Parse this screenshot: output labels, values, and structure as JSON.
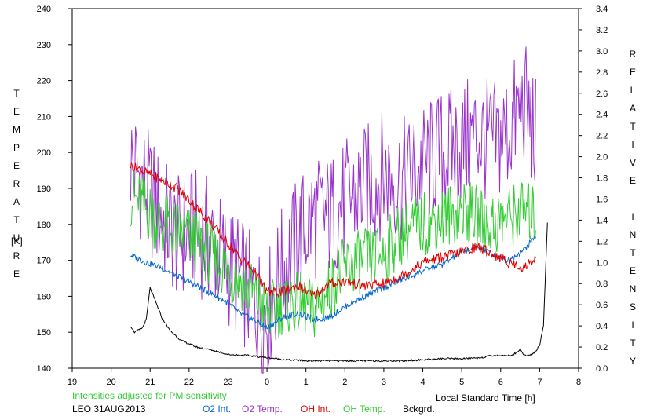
{
  "chart_data": {
    "type": "line",
    "x_ticks": [
      "19",
      "20",
      "21",
      "22",
      "23",
      "0",
      "1",
      "2",
      "3",
      "4",
      "5",
      "6",
      "7",
      "8"
    ],
    "y_left_ticks": [
      "140",
      "150",
      "160",
      "170",
      "180",
      "190",
      "200",
      "210",
      "220",
      "230",
      "240"
    ],
    "y_right_ticks": [
      "0.0",
      "0.2",
      "0.4",
      "0.6",
      "0.8",
      "1.0",
      "1.2",
      "1.4",
      "1.6",
      "1.8",
      "2.0",
      "2.2",
      "2.4",
      "2.6",
      "2.8",
      "3.0",
      "3.2",
      "3.4"
    ],
    "ylim_left": [
      140,
      240
    ],
    "ylim_right": [
      0,
      3.4
    ],
    "xlim": [
      19,
      32
    ],
    "ylabel_left": "TEMPERATURE",
    "ylabel_left_unit": "[K]",
    "ylabel_right": "RELATIVE INTENSITY",
    "xlabel": "Local Standard Time [h]",
    "note": "Intensities adjusted for PM sensitivity",
    "station": "LEO 31AUG2013",
    "series": [
      {
        "name": "O2 Int.",
        "color": "#0066cc",
        "axis": "right",
        "x": [
          20.5,
          20.9,
          21.3,
          21.7,
          22.1,
          22.5,
          22.9,
          23.3,
          23.7,
          24.0,
          24.4,
          24.8,
          25.2,
          25.6,
          26.0,
          26.5,
          27.0,
          27.5,
          28.0,
          28.5,
          29.0,
          29.4,
          29.8,
          30.2,
          30.6,
          30.9
        ],
        "y": [
          1.07,
          1.0,
          0.95,
          0.87,
          0.8,
          0.72,
          0.64,
          0.52,
          0.45,
          0.38,
          0.48,
          0.52,
          0.46,
          0.48,
          0.58,
          0.68,
          0.76,
          0.84,
          0.92,
          0.98,
          1.1,
          1.15,
          1.08,
          1.02,
          1.12,
          1.25
        ]
      },
      {
        "name": "O2 Temp.",
        "color": "#9933cc",
        "axis": "left",
        "x": [
          20.5,
          20.9,
          21.3,
          21.7,
          22.1,
          22.5,
          22.9,
          23.3,
          23.7,
          24.0,
          24.4,
          24.8,
          25.2,
          25.6,
          26.0,
          26.5,
          27.0,
          27.5,
          28.0,
          28.5,
          29.0,
          29.4,
          29.8,
          30.2,
          30.6,
          30.9
        ],
        "y": [
          198,
          190,
          182,
          176,
          178,
          176,
          170,
          165,
          158,
          155,
          168,
          176,
          182,
          182,
          186,
          190,
          194,
          192,
          196,
          200,
          202,
          205,
          202,
          206,
          214,
          204
        ]
      },
      {
        "name": "OH Int.",
        "color": "#dd0000",
        "axis": "right",
        "x": [
          20.5,
          20.9,
          21.3,
          21.7,
          22.1,
          22.5,
          22.9,
          23.3,
          23.7,
          24.0,
          24.4,
          24.8,
          25.2,
          25.6,
          26.0,
          26.5,
          27.0,
          27.5,
          28.0,
          28.5,
          29.0,
          29.4,
          29.8,
          30.2,
          30.6,
          30.9
        ],
        "y": [
          1.92,
          1.85,
          1.78,
          1.7,
          1.55,
          1.4,
          1.22,
          1.05,
          0.9,
          0.72,
          0.72,
          0.78,
          0.68,
          0.8,
          0.82,
          0.78,
          0.8,
          0.88,
          1.0,
          1.05,
          1.1,
          1.15,
          1.08,
          1.0,
          0.95,
          1.05
        ]
      },
      {
        "name": "OH Temp.",
        "color": "#33cc33",
        "axis": "left",
        "x": [
          20.5,
          20.9,
          21.3,
          21.7,
          22.1,
          22.5,
          22.9,
          23.3,
          23.7,
          24.0,
          24.4,
          24.8,
          25.2,
          25.6,
          26.0,
          26.5,
          27.0,
          27.5,
          28.0,
          28.5,
          29.0,
          29.4,
          29.8,
          30.2,
          30.6,
          30.9
        ],
        "y": [
          188,
          184,
          180,
          178,
          176,
          172,
          168,
          165,
          160,
          155,
          158,
          158,
          156,
          162,
          168,
          170,
          172,
          178,
          180,
          182,
          184,
          182,
          180,
          182,
          184,
          182
        ]
      },
      {
        "name": "Bckgrd.",
        "color": "#000000",
        "axis": "right",
        "x": [
          20.5,
          20.6,
          20.8,
          20.9,
          21.0,
          21.15,
          21.3,
          21.5,
          21.8,
          22.2,
          22.6,
          23.0,
          23.5,
          24.0,
          24.5,
          25.0,
          25.5,
          26.0,
          26.5,
          27.0,
          27.5,
          28.0,
          28.5,
          29.0,
          29.5,
          29.8,
          30.0,
          30.3,
          30.5,
          30.6,
          30.8,
          30.9,
          31.0,
          31.1,
          31.2
        ],
        "y": [
          0.4,
          0.34,
          0.38,
          0.46,
          0.76,
          0.62,
          0.48,
          0.36,
          0.26,
          0.2,
          0.17,
          0.13,
          0.12,
          0.1,
          0.08,
          0.07,
          0.07,
          0.07,
          0.07,
          0.07,
          0.07,
          0.08,
          0.09,
          0.09,
          0.1,
          0.12,
          0.12,
          0.12,
          0.18,
          0.12,
          0.13,
          0.16,
          0.22,
          0.4,
          1.38
        ]
      }
    ]
  },
  "labels": {
    "temperature": "TEMPERATURE",
    "temp_unit": "[K]",
    "relative": "RELATIVE",
    "intensity": "INTENSITY",
    "x_axis": "Local Standard Time [h]",
    "note": "Intensities adjusted for PM sensitivity",
    "station": "LEO 31AUG2013"
  },
  "legend": [
    {
      "label": "O2 Int.",
      "color": "#0066cc"
    },
    {
      "label": "O2 Temp.",
      "color": "#9933cc"
    },
    {
      "label": "OH Int.",
      "color": "#dd0000"
    },
    {
      "label": "OH Temp.",
      "color": "#33cc33"
    },
    {
      "label": "Bckgrd.",
      "color": "#000000"
    }
  ],
  "colors": {
    "note": "#33cc33",
    "axis": "#000000"
  }
}
